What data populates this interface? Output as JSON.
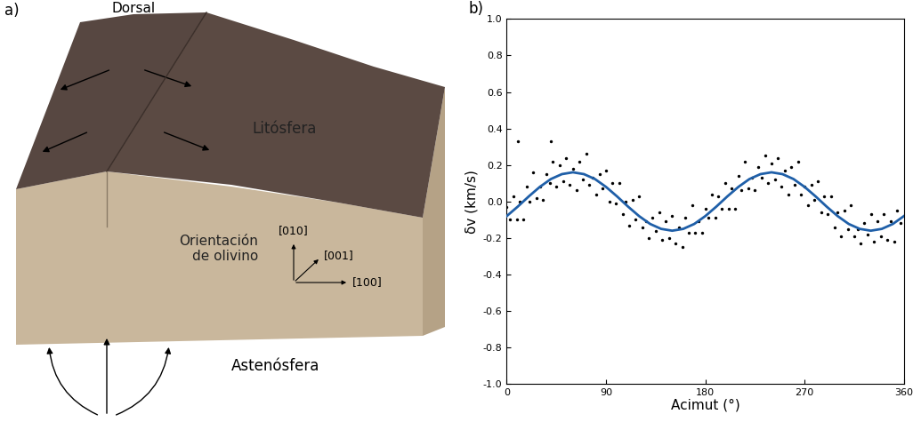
{
  "panel_labels": [
    "a)",
    "b)"
  ],
  "diagram": {
    "ridge_label": "Dorsal",
    "plate_label": "Litósfera",
    "orientation_label": "Orientación\nde olivino",
    "axes_labels": [
      "[010]",
      "[001]",
      "[100]"
    ],
    "mantle_label": "Astenósfera"
  },
  "chart_data": {
    "type": "scatter",
    "xlabel": "Acimut (°)",
    "ylabel": "δv (km/s)",
    "xlim": [
      0,
      360
    ],
    "xticks": [
      0,
      90,
      180,
      270,
      360
    ],
    "ylim": [
      -1.0,
      1.0
    ],
    "yticks": [
      {
        "value": -1.0,
        "label": "-1.0"
      },
      -0.8,
      -0.6,
      -0.4,
      -0.2,
      {
        "value": 0.0,
        "label": "0.0"
      },
      0.2,
      0.4,
      0.6,
      0.8,
      {
        "value": 1.0,
        "label": "1.0"
      }
    ],
    "series": [
      {
        "type": "scatter",
        "color": "#000000",
        "marker": "o",
        "x": [
          0,
          3,
          6,
          9,
          12,
          15,
          18,
          21,
          24,
          27,
          30,
          33,
          36,
          39,
          42,
          45,
          48,
          51,
          54,
          57,
          60,
          63,
          66,
          69,
          72,
          75,
          78,
          81,
          84,
          87,
          90,
          93,
          96,
          99,
          102,
          105,
          108,
          111,
          114,
          117,
          120,
          123,
          126,
          129,
          132,
          135,
          138,
          141,
          144,
          147,
          150,
          153,
          156,
          159,
          162,
          165,
          168,
          171,
          174,
          177,
          180,
          183,
          186,
          189,
          192,
          195,
          198,
          201,
          204,
          207,
          210,
          213,
          216,
          219,
          222,
          225,
          228,
          231,
          234,
          237,
          240,
          243,
          246,
          249,
          252,
          255,
          258,
          261,
          264,
          267,
          270,
          273,
          276,
          279,
          282,
          285,
          288,
          291,
          294,
          297,
          300,
          303,
          306,
          309,
          312,
          315,
          318,
          321,
          324,
          327,
          330,
          333,
          336,
          339,
          342,
          345,
          348,
          351,
          354,
          357,
          10,
          40
        ],
        "values": [
          -0.03,
          -0.1,
          0.03,
          -0.1,
          0.0,
          -0.1,
          0.08,
          0.0,
          0.16,
          0.02,
          0.08,
          0.01,
          0.15,
          0.1,
          0.22,
          0.08,
          0.2,
          0.11,
          0.24,
          0.09,
          0.18,
          0.06,
          0.22,
          0.12,
          0.26,
          0.09,
          0.13,
          0.04,
          0.15,
          0.07,
          0.17,
          0.0,
          0.1,
          -0.01,
          0.1,
          -0.07,
          0.0,
          -0.13,
          0.01,
          -0.1,
          0.03,
          -0.14,
          -0.11,
          -0.2,
          -0.09,
          -0.16,
          -0.06,
          -0.21,
          -0.11,
          -0.2,
          -0.08,
          -0.23,
          -0.14,
          -0.25,
          -0.09,
          -0.17,
          -0.02,
          -0.17,
          -0.11,
          -0.17,
          -0.04,
          -0.09,
          0.04,
          -0.09,
          0.03,
          -0.04,
          0.1,
          -0.04,
          0.07,
          -0.04,
          0.14,
          0.06,
          0.22,
          0.07,
          0.13,
          0.06,
          0.19,
          0.13,
          0.25,
          0.1,
          0.21,
          0.12,
          0.24,
          0.08,
          0.17,
          0.04,
          0.19,
          0.09,
          0.22,
          0.04,
          0.08,
          -0.02,
          0.09,
          0.01,
          0.11,
          -0.06,
          0.03,
          -0.07,
          0.03,
          -0.14,
          -0.06,
          -0.19,
          -0.05,
          -0.15,
          -0.02,
          -0.19,
          -0.15,
          -0.23,
          -0.12,
          -0.18,
          -0.07,
          -0.22,
          -0.11,
          -0.19,
          -0.07,
          -0.21,
          -0.11,
          -0.22,
          -0.05,
          -0.12,
          0.33,
          0.33
        ]
      },
      {
        "type": "line",
        "color": "#1f5fa8",
        "line_style": "solid",
        "x": [
          0,
          10,
          20,
          30,
          40,
          50,
          60,
          70,
          80,
          90,
          100,
          110,
          120,
          130,
          140,
          150,
          160,
          170,
          180,
          190,
          200,
          210,
          220,
          230,
          240,
          250,
          260,
          270,
          280,
          290,
          300,
          310,
          320,
          330,
          340,
          350,
          360
        ],
        "values": [
          -0.08,
          -0.028,
          0.028,
          0.08,
          0.123,
          0.15,
          0.16,
          0.15,
          0.123,
          0.08,
          0.028,
          -0.028,
          -0.08,
          -0.123,
          -0.15,
          -0.16,
          -0.15,
          -0.123,
          -0.08,
          -0.028,
          0.028,
          0.08,
          0.123,
          0.15,
          0.16,
          0.15,
          0.123,
          0.08,
          0.028,
          -0.028,
          -0.08,
          -0.123,
          -0.15,
          -0.16,
          -0.15,
          -0.123,
          -0.08
        ]
      }
    ]
  }
}
